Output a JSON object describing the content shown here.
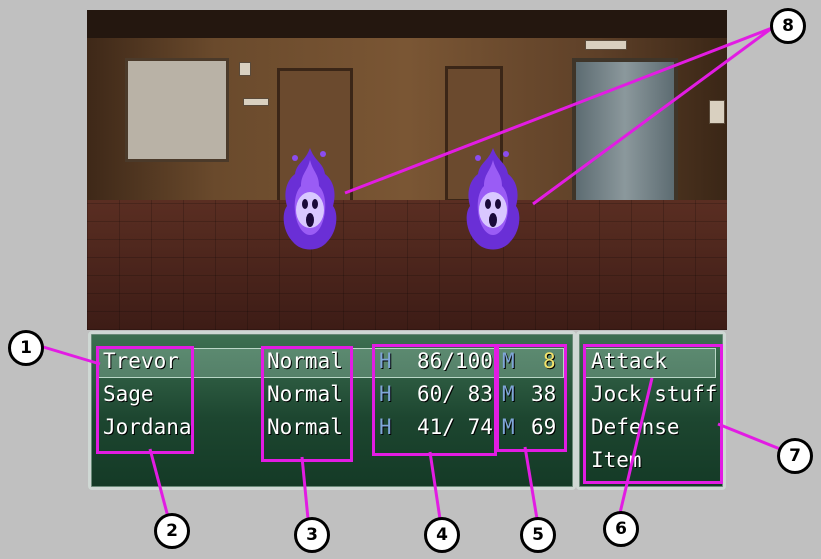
{
  "party": [
    {
      "name": "Trevor",
      "status": "Normal",
      "hp_label": "H",
      "hp": "86/100",
      "mp_label": "M",
      "mp": "8",
      "mp_low": true
    },
    {
      "name": "Sage",
      "status": "Normal",
      "hp_label": "H",
      "hp": "60/ 83",
      "mp_label": "M",
      "mp": "38",
      "mp_low": false
    },
    {
      "name": "Jordana",
      "status": "Normal",
      "hp_label": "H",
      "hp": "41/ 74",
      "mp_label": "M",
      "mp": "69",
      "mp_low": false
    }
  ],
  "commands": [
    "Attack",
    "Jock stuff",
    "Defense",
    "Item"
  ],
  "selected_command_index": 0,
  "enemies": [
    {
      "sprite": "purple-flame-ghost-icon"
    },
    {
      "sprite": "purple-flame-ghost-icon"
    }
  ],
  "callouts": [
    "1",
    "2",
    "3",
    "4",
    "5",
    "6",
    "7",
    "8"
  ],
  "colors": {
    "callout": "#e21ce3",
    "panel": "#1d4630",
    "low_mp": "#f3e36b",
    "hp_letter": "#7fa6d8"
  }
}
